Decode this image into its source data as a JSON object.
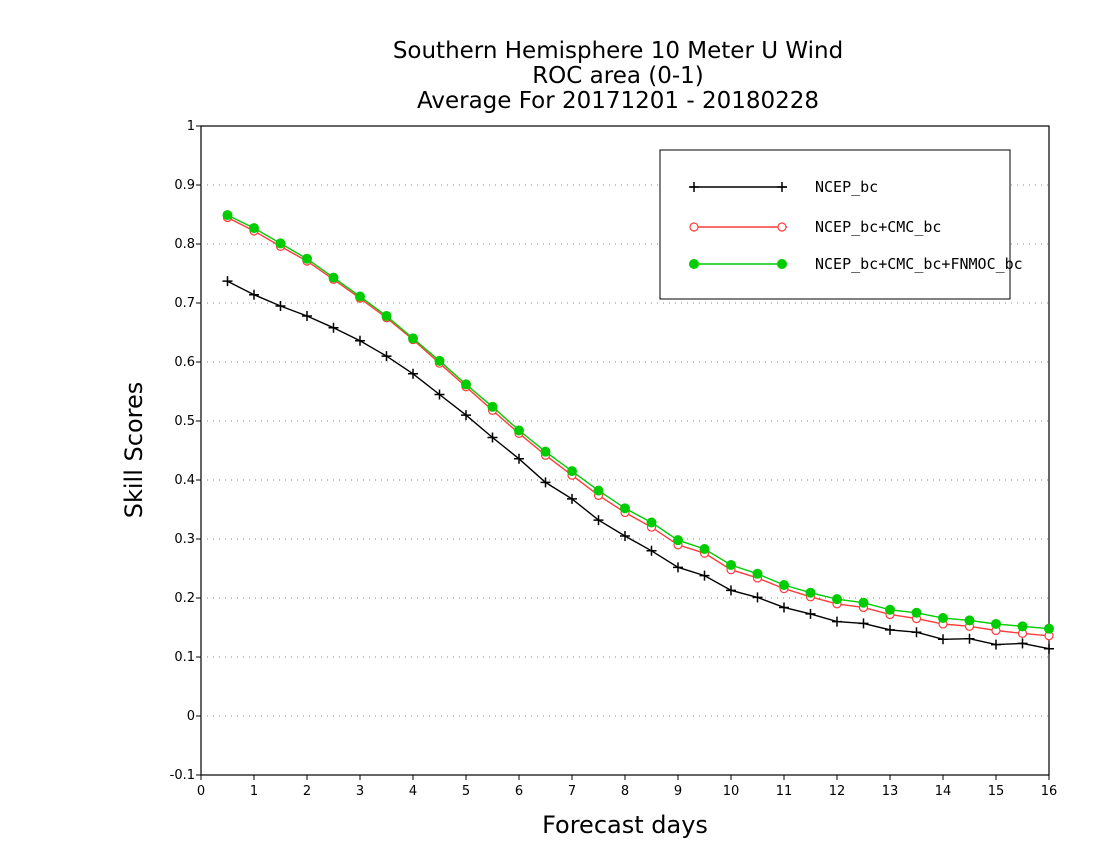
{
  "chart_data": {
    "type": "line",
    "title_lines": [
      "Southern Hemisphere 10 Meter U Wind",
      "ROC area (0-1)",
      "Average For 20171201 - 20180228"
    ],
    "xlabel": "Forecast days",
    "ylabel": "Skill Scores",
    "xlim": [
      0,
      16
    ],
    "ylim": [
      -0.1,
      1
    ],
    "xticks": [
      "0",
      "1",
      "2",
      "3",
      "4",
      "5",
      "6",
      "7",
      "8",
      "9",
      "10",
      "11",
      "12",
      "13",
      "14",
      "15",
      "16"
    ],
    "yticks": [
      "-0.1",
      "0",
      "0.1",
      "0.2",
      "0.3",
      "0.4",
      "0.5",
      "0.6",
      "0.7",
      "0.8",
      "0.9",
      "1"
    ],
    "grid": "dotted horizontal",
    "legend_position": "top-right",
    "x": [
      0.5,
      1,
      1.5,
      2,
      2.5,
      3,
      3.5,
      4,
      4.5,
      5,
      5.5,
      6,
      6.5,
      7,
      7.5,
      8,
      8.5,
      9,
      9.5,
      10,
      10.5,
      11,
      11.5,
      12,
      12.5,
      13,
      13.5,
      14,
      14.5,
      15,
      15.5,
      16
    ],
    "series": [
      {
        "name": "NCEP_bc",
        "color": "#000000",
        "marker": "plus",
        "values": [
          0.737,
          0.714,
          0.695,
          0.678,
          0.658,
          0.636,
          0.61,
          0.58,
          0.545,
          0.51,
          0.472,
          0.436,
          0.396,
          0.368,
          0.332,
          0.305,
          0.28,
          0.252,
          0.238,
          0.213,
          0.201,
          0.184,
          0.173,
          0.16,
          0.157,
          0.146,
          0.142,
          0.13,
          0.131,
          0.121,
          0.123,
          0.114
        ]
      },
      {
        "name": "NCEP_bc+CMC_bc",
        "color": "#ff3b3b",
        "marker": "open-circle",
        "values": [
          0.845,
          0.822,
          0.796,
          0.771,
          0.74,
          0.708,
          0.675,
          0.638,
          0.598,
          0.558,
          0.518,
          0.479,
          0.442,
          0.408,
          0.374,
          0.345,
          0.32,
          0.29,
          0.276,
          0.248,
          0.234,
          0.216,
          0.202,
          0.19,
          0.184,
          0.172,
          0.165,
          0.156,
          0.152,
          0.145,
          0.14,
          0.136
        ]
      },
      {
        "name": "NCEP_bc+CMC_bc+FNMOC_bc",
        "color": "#00cc00",
        "marker": "filled-circle",
        "values": [
          0.849,
          0.827,
          0.801,
          0.775,
          0.743,
          0.711,
          0.678,
          0.64,
          0.602,
          0.562,
          0.524,
          0.484,
          0.448,
          0.415,
          0.382,
          0.352,
          0.328,
          0.298,
          0.283,
          0.256,
          0.241,
          0.222,
          0.209,
          0.198,
          0.192,
          0.18,
          0.175,
          0.166,
          0.162,
          0.156,
          0.152,
          0.148
        ]
      }
    ]
  }
}
